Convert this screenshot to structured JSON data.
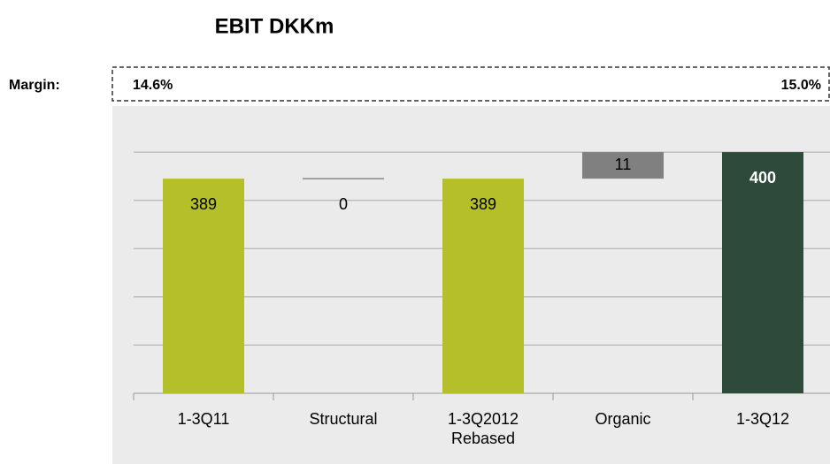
{
  "chart_data": {
    "type": "waterfall",
    "title": "EBIT DKKm",
    "margin_label": "Margin:",
    "margins": [
      "14.6%",
      "15.0%"
    ],
    "categories": [
      "1-3Q11",
      "Structural",
      "1-3Q2012 Rebased",
      "Organic",
      "1-3Q12"
    ],
    "values": [
      389,
      0,
      389,
      11,
      400
    ],
    "kinds": [
      "total",
      "delta",
      "total",
      "delta",
      "total"
    ],
    "colors": [
      "#b4bf2a",
      "#555555",
      "#b4bf2a",
      "#808080",
      "#2e4a3a"
    ],
    "label_colors": [
      "#000000",
      "#000000",
      "#000000",
      "#000000",
      "#ffffff"
    ],
    "label_weights": [
      "normal",
      "normal",
      "normal",
      "normal",
      "bold"
    ],
    "ylim": [
      300,
      418
    ],
    "yticks": [
      300,
      320,
      340,
      360,
      380,
      400
    ],
    "grid": true
  }
}
